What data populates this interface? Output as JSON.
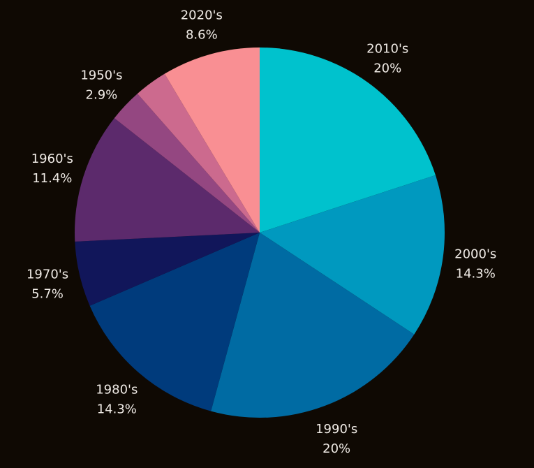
{
  "chart_data": {
    "type": "pie",
    "background": "#0f0903",
    "start_angle_deg": 0,
    "direction": "clockwise",
    "slices": [
      {
        "label": "2010's",
        "value": 20,
        "display": "20%",
        "color": "#00c2cd"
      },
      {
        "label": "2000's",
        "value": 14.3,
        "display": "14.3%",
        "color": "#0099bf"
      },
      {
        "label": "1990's",
        "value": 20,
        "display": "20%",
        "color": "#006ba3"
      },
      {
        "label": "1980's",
        "value": 14.3,
        "display": "14.3%",
        "color": "#003b7c"
      },
      {
        "label": "1970's",
        "value": 5.7,
        "display": "5.7%",
        "color": "#11165a"
      },
      {
        "label": "1960's",
        "value": 11.4,
        "display": "11.4%",
        "color": "#5c2a6c"
      },
      {
        "label": "1950's",
        "value": 2.9,
        "display": "2.9%",
        "color": "#944781"
      },
      {
        "label": "",
        "value": 2.9,
        "display": "",
        "color": "#cc6a8e"
      },
      {
        "label": "2020's",
        "value": 8.6,
        "display": "8.6%",
        "color": "#f98f93"
      }
    ]
  }
}
